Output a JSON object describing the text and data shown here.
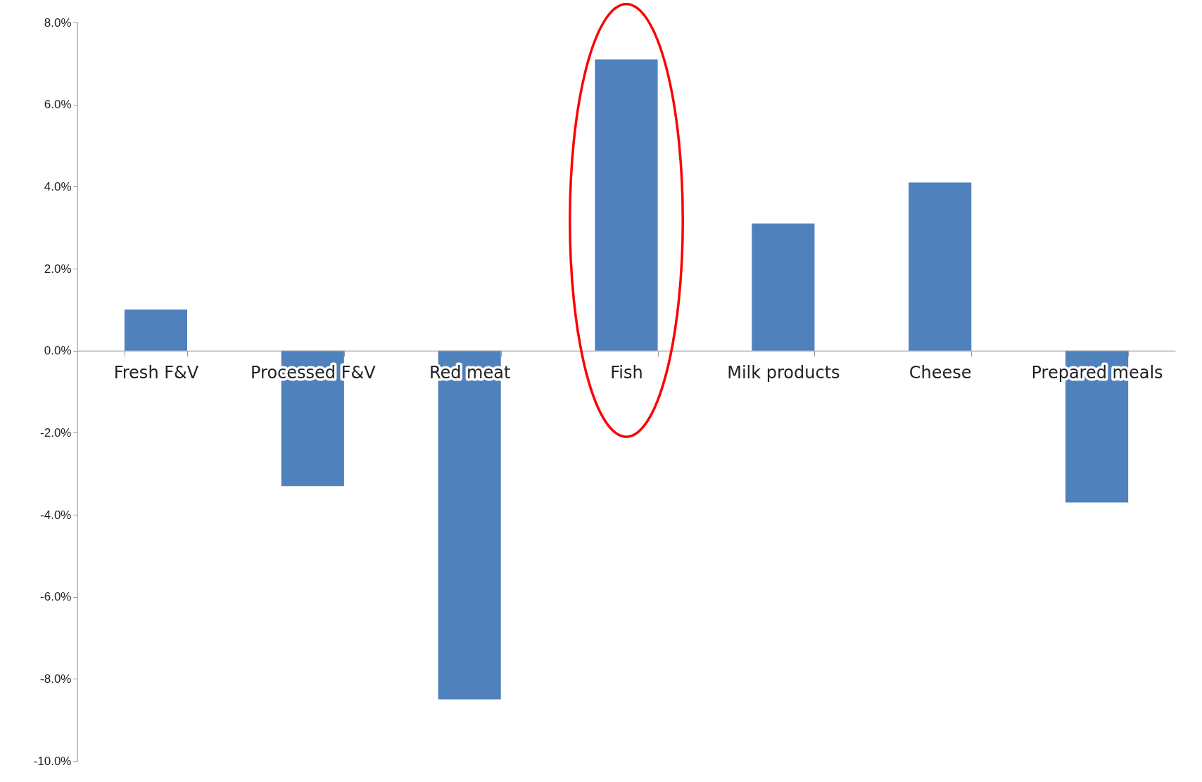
{
  "chart_data": {
    "type": "bar",
    "categories": [
      "Fresh F&V",
      "Processed F&V",
      "Red meat",
      "Fish",
      "Milk products",
      "Cheese",
      "Prepared meals"
    ],
    "values": [
      1.0,
      -3.3,
      -8.5,
      7.1,
      3.1,
      4.1,
      -3.7
    ],
    "color": "#4f81bd",
    "ylim": [
      -10,
      8
    ],
    "yticks": [
      {
        "value": -10,
        "label": "-10.0%"
      },
      {
        "value": -8,
        "label": "-8.0%"
      },
      {
        "value": -6,
        "label": "-6.0%"
      },
      {
        "value": -4,
        "label": "-4.0%"
      },
      {
        "value": -2,
        "label": "-2.0%"
      },
      {
        "value": 0,
        "label": "0.0%"
      },
      {
        "value": 2,
        "label": "2.0%"
      },
      {
        "value": 4,
        "label": "4.0%"
      },
      {
        "value": 6,
        "label": "6.0%"
      },
      {
        "value": 8,
        "label": "8.0%"
      }
    ],
    "grid": false
  }
}
